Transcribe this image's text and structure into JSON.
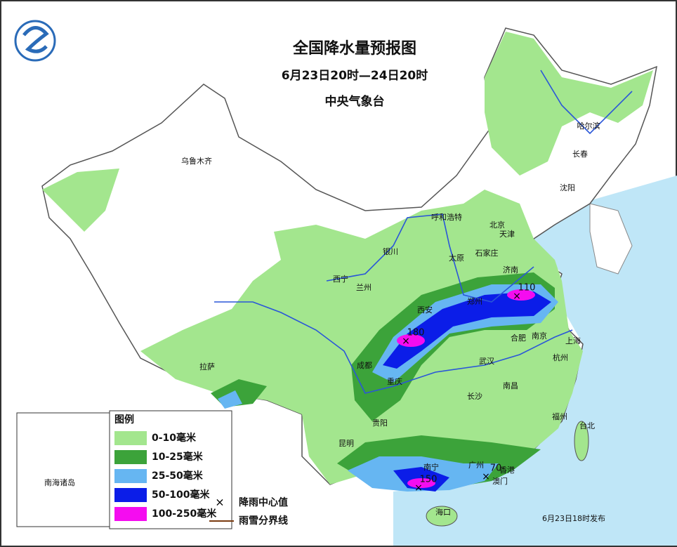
{
  "header": {
    "title": "全国降水量预报图",
    "period": "6月23日20时—24日20时",
    "issuer": "中央气象台"
  },
  "cities": [
    "乌鲁木齐",
    "哈尔滨",
    "长春",
    "沈阳",
    "呼和浩特",
    "北京",
    "天津",
    "石家庄",
    "太原",
    "济南",
    "银川",
    "西宁",
    "兰州",
    "郑州",
    "西安",
    "合肥",
    "南京",
    "上海",
    "杭州",
    "成都",
    "重庆",
    "武汉",
    "拉萨",
    "长沙",
    "南昌",
    "贵阳",
    "福州",
    "台北",
    "昆明",
    "南宁",
    "广州",
    "香港",
    "澳门",
    "海口"
  ],
  "rain_centers": [
    110,
    180,
    150,
    70
  ],
  "legend": {
    "title": "图例",
    "items": [
      {
        "label": "0-10毫米",
        "color": "#a3e68e"
      },
      {
        "label": "10-25毫米",
        "color": "#3ca33a"
      },
      {
        "label": "25-50毫米",
        "color": "#66b6f2"
      },
      {
        "label": "50-100毫米",
        "color": "#0b1de8"
      },
      {
        "label": "100-250毫米",
        "color": "#f50cf0"
      }
    ],
    "center_marker": "降雨中心值",
    "snow_line": "雨雪分界线"
  },
  "inset": {
    "label": "南海诸岛"
  },
  "footer": {
    "issued": "6月23日18时发布"
  }
}
